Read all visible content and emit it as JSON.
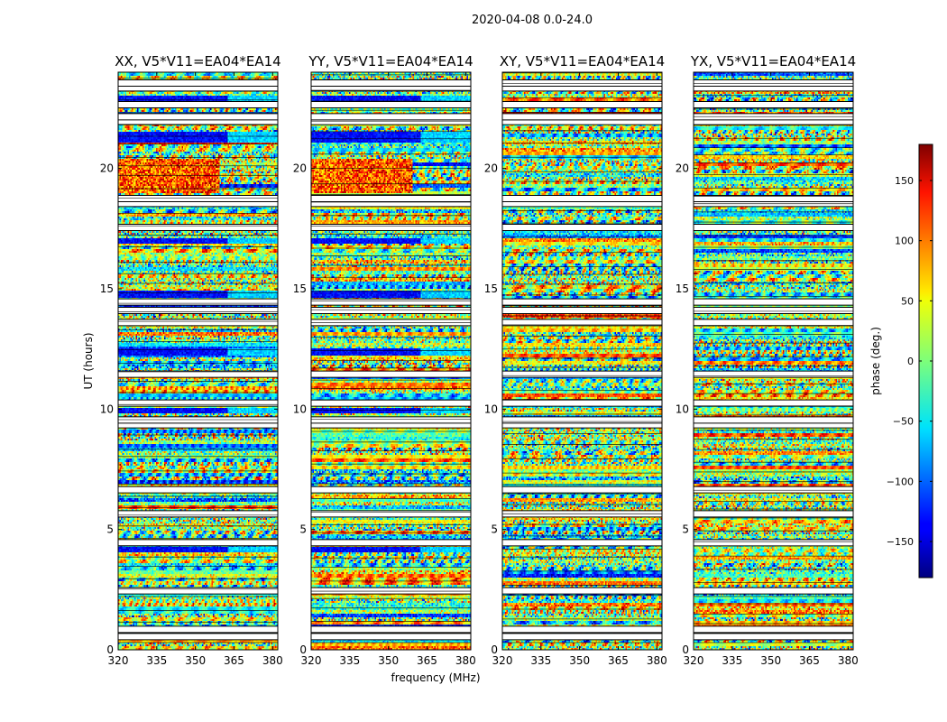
{
  "chart_data": {
    "type": "heatmap",
    "suptitle": "2020-04-08 0.0-24.0",
    "panels": [
      {
        "title": "XX, V5*V11=EA04*EA14",
        "seed": 11
      },
      {
        "title": "YY, V5*V11=EA04*EA14",
        "seed": 23
      },
      {
        "title": "XY, V5*V11=EA04*EA14",
        "seed": 37
      },
      {
        "title": "YX, V5*V11=EA04*EA14",
        "seed": 53
      }
    ],
    "xlabel": "frequency (MHz)",
    "ylabel": "UT (hours)",
    "xlim": [
      320,
      382
    ],
    "ylim": [
      0,
      24
    ],
    "xticks": [
      320,
      335,
      350,
      365,
      380
    ],
    "yticks": [
      0,
      5,
      10,
      15,
      20
    ],
    "colorbar": {
      "label": "phase (deg.)",
      "range": [
        -180,
        180
      ],
      "ticks": [
        150,
        100,
        50,
        0,
        -50,
        -100,
        -150
      ],
      "tick_labels": [
        "150",
        "100",
        "50",
        "0",
        "−50",
        "−100",
        "−150"
      ],
      "colormap": "jet"
    },
    "blank_rows_ut": [
      0.55,
      0.85,
      2.45,
      4.45,
      5.65,
      6.65,
      9.35,
      9.55,
      10.25,
      11.45,
      13.6,
      14.1,
      14.45,
      17.55,
      18.55,
      18.75,
      21.95,
      22.15,
      22.65,
      23.35,
      23.55
    ],
    "colors": {
      "axes": "#000000",
      "background": "#ffffff"
    }
  }
}
